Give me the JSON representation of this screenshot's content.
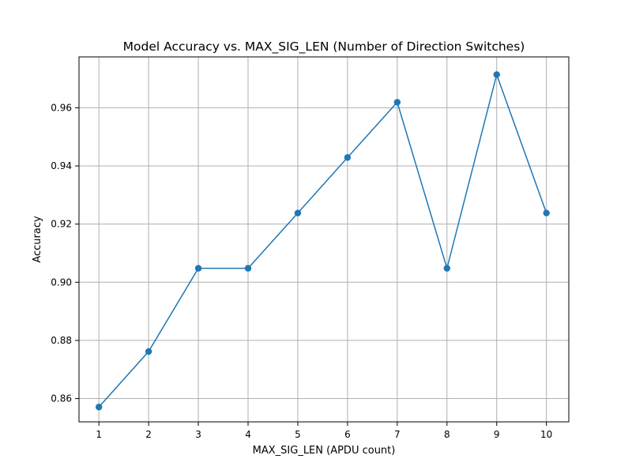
{
  "chart_data": {
    "type": "line",
    "title": "Model Accuracy vs. MAX_SIG_LEN (Number of Direction Switches)",
    "xlabel": "MAX_SIG_LEN (APDU count)",
    "ylabel": "Accuracy",
    "x": [
      1,
      2,
      3,
      4,
      5,
      6,
      7,
      8,
      9,
      10
    ],
    "series": [
      {
        "values": [
          0.8571,
          0.8762,
          0.9048,
          0.9048,
          0.9238,
          0.9429,
          0.9619,
          0.9048,
          0.9714,
          0.9238
        ],
        "color": "#1f77b4",
        "marker": "circle"
      }
    ],
    "xticks": [
      "1",
      "2",
      "3",
      "4",
      "5",
      "6",
      "7",
      "8",
      "9",
      "10"
    ],
    "yticks": [
      "0.86",
      "0.88",
      "0.90",
      "0.92",
      "0.94",
      "0.96"
    ],
    "xlim": [
      0.6,
      10.45
    ],
    "ylim": [
      0.852,
      0.9775
    ],
    "grid": true,
    "legend": "none"
  }
}
